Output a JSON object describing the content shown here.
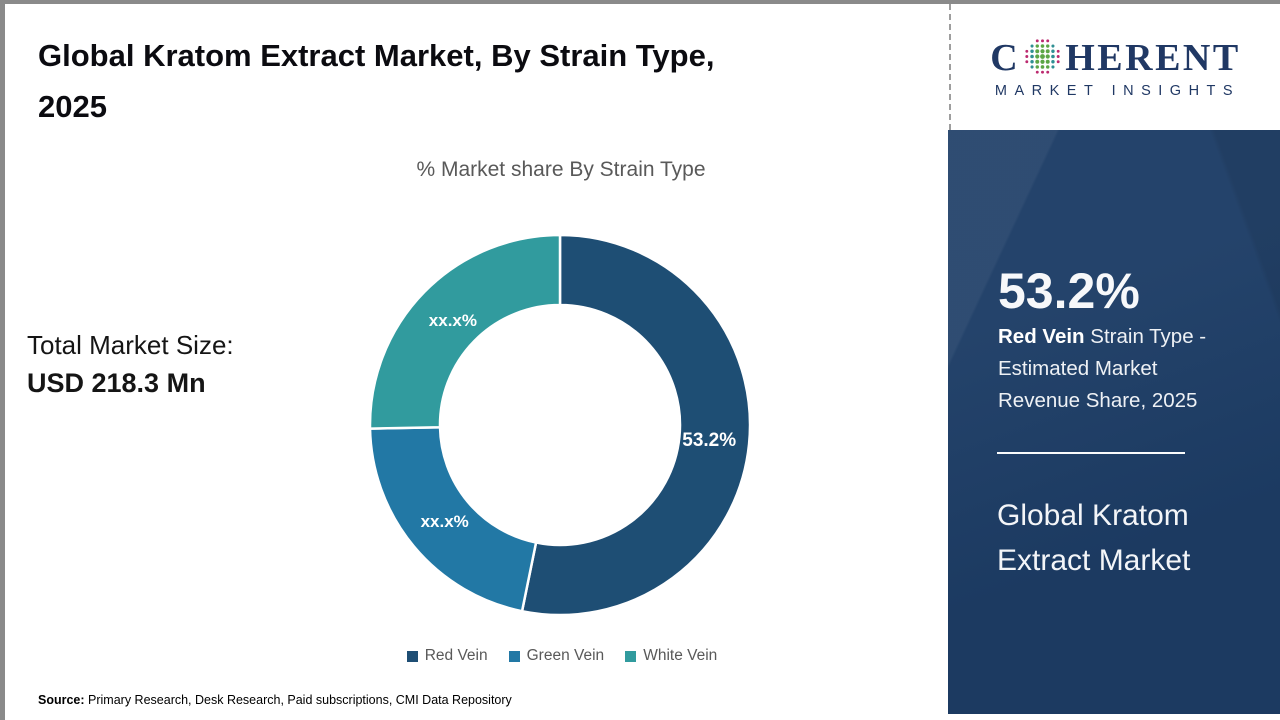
{
  "header": {
    "title_line1": "Global Kratom Extract Market, By Strain Type,",
    "title_line2": "2025"
  },
  "chart": {
    "subtitle": "% Market share By Strain Type"
  },
  "total_market": {
    "label": "Total Market Size:",
    "value": "USD 218.3 Mn"
  },
  "chart_data": {
    "type": "pie",
    "donut": true,
    "title": "% Market share By Strain Type",
    "categories": [
      "Red Vein",
      "Green Vein",
      "White Vein"
    ],
    "values": [
      53.2,
      21.5,
      25.3
    ],
    "display_labels": [
      "53.2%",
      "xx.x%",
      "xx.x%"
    ],
    "colors": [
      "#1e4e74",
      "#2278a5",
      "#319b9e"
    ],
    "start_angle_deg": 0,
    "direction": "clockwise",
    "legend_position": "bottom"
  },
  "source": {
    "label": "Source:",
    "text": "Primary Research, Desk Research, Paid subscriptions, CMI Data Repository"
  },
  "sidebar": {
    "logo": {
      "brand_first_letter": "C",
      "brand_rest": "HERENT",
      "tagline": "MARKET INSIGHTS"
    },
    "stat_value": "53.2%",
    "stat_desc_bold": "Red Vein",
    "stat_desc_rest": " Strain Type - Estimated Market Revenue Share, 2025",
    "panel_title": "Global Kratom Extract Market"
  },
  "colors": {
    "red_vein": "#1e4e74",
    "green_vein": "#2278a5",
    "white_vein": "#319b9e",
    "sidebar_bg": "#1d3d66",
    "logo_navy": "#203864",
    "muted_text": "#595959"
  }
}
